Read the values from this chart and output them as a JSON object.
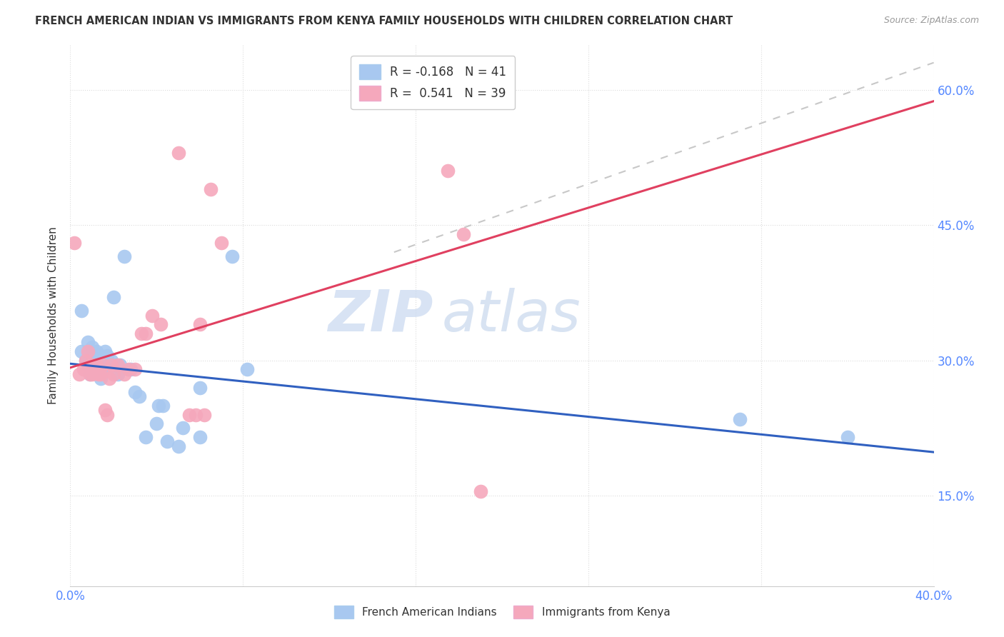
{
  "title": "FRENCH AMERICAN INDIAN VS IMMIGRANTS FROM KENYA FAMILY HOUSEHOLDS WITH CHILDREN CORRELATION CHART",
  "source": "Source: ZipAtlas.com",
  "ylabel": "Family Households with Children",
  "legend_blue_r": "R = -0.168",
  "legend_blue_n": "N = 41",
  "legend_pink_r": "R =  0.541",
  "legend_pink_n": "N = 39",
  "legend_label_blue": "French American Indians",
  "legend_label_pink": "Immigrants from Kenya",
  "blue_color": "#A8C8F0",
  "pink_color": "#F5A8BC",
  "blue_line_color": "#3060C0",
  "pink_line_color": "#E04060",
  "diagonal_color": "#C8C8C8",
  "watermark_zip": "ZIP",
  "watermark_atlas": "atlas",
  "blue_dots": [
    [
      0.005,
      0.355
    ],
    [
      0.005,
      0.31
    ],
    [
      0.007,
      0.3
    ],
    [
      0.008,
      0.32
    ],
    [
      0.008,
      0.295
    ],
    [
      0.009,
      0.285
    ],
    [
      0.01,
      0.29
    ],
    [
      0.01,
      0.305
    ],
    [
      0.01,
      0.315
    ],
    [
      0.011,
      0.3
    ],
    [
      0.012,
      0.31
    ],
    [
      0.012,
      0.295
    ],
    [
      0.013,
      0.295
    ],
    [
      0.013,
      0.285
    ],
    [
      0.014,
      0.28
    ],
    [
      0.015,
      0.29
    ],
    [
      0.016,
      0.31
    ],
    [
      0.017,
      0.305
    ],
    [
      0.018,
      0.295
    ],
    [
      0.019,
      0.3
    ],
    [
      0.02,
      0.37
    ],
    [
      0.021,
      0.295
    ],
    [
      0.022,
      0.285
    ],
    [
      0.023,
      0.295
    ],
    [
      0.025,
      0.415
    ],
    [
      0.028,
      0.29
    ],
    [
      0.03,
      0.265
    ],
    [
      0.032,
      0.26
    ],
    [
      0.035,
      0.215
    ],
    [
      0.04,
      0.23
    ],
    [
      0.041,
      0.25
    ],
    [
      0.043,
      0.25
    ],
    [
      0.045,
      0.21
    ],
    [
      0.05,
      0.205
    ],
    [
      0.052,
      0.225
    ],
    [
      0.06,
      0.27
    ],
    [
      0.06,
      0.215
    ],
    [
      0.075,
      0.415
    ],
    [
      0.082,
      0.29
    ],
    [
      0.31,
      0.235
    ],
    [
      0.36,
      0.215
    ]
  ],
  "pink_dots": [
    [
      0.002,
      0.43
    ],
    [
      0.004,
      0.285
    ],
    [
      0.006,
      0.29
    ],
    [
      0.007,
      0.3
    ],
    [
      0.008,
      0.31
    ],
    [
      0.008,
      0.29
    ],
    [
      0.009,
      0.295
    ],
    [
      0.009,
      0.285
    ],
    [
      0.01,
      0.295
    ],
    [
      0.01,
      0.285
    ],
    [
      0.011,
      0.29
    ],
    [
      0.012,
      0.295
    ],
    [
      0.013,
      0.285
    ],
    [
      0.014,
      0.285
    ],
    [
      0.015,
      0.295
    ],
    [
      0.016,
      0.245
    ],
    [
      0.017,
      0.24
    ],
    [
      0.018,
      0.28
    ],
    [
      0.019,
      0.295
    ],
    [
      0.02,
      0.285
    ],
    [
      0.022,
      0.295
    ],
    [
      0.025,
      0.285
    ],
    [
      0.027,
      0.29
    ],
    [
      0.03,
      0.29
    ],
    [
      0.033,
      0.33
    ],
    [
      0.035,
      0.33
    ],
    [
      0.038,
      0.35
    ],
    [
      0.042,
      0.34
    ],
    [
      0.05,
      0.53
    ],
    [
      0.055,
      0.24
    ],
    [
      0.058,
      0.24
    ],
    [
      0.06,
      0.34
    ],
    [
      0.062,
      0.24
    ],
    [
      0.065,
      0.49
    ],
    [
      0.07,
      0.43
    ],
    [
      0.16,
      0.59
    ],
    [
      0.175,
      0.51
    ],
    [
      0.182,
      0.44
    ],
    [
      0.19,
      0.155
    ]
  ],
  "xlim": [
    0.0,
    0.4
  ],
  "ylim": [
    0.05,
    0.65
  ],
  "ytick_positions": [
    0.15,
    0.3,
    0.45,
    0.6
  ],
  "ytick_labels": [
    "15.0%",
    "30.0%",
    "45.0%",
    "60.0%"
  ],
  "xtick_positions": [
    0.0,
    0.08,
    0.16,
    0.24,
    0.32,
    0.4
  ],
  "xtick_labels": [
    "0.0%",
    "",
    "",
    "",
    "",
    "40.0%"
  ],
  "background_color": "#FFFFFF",
  "grid_color": "#DCDCDC",
  "tick_color": "#5588FF",
  "text_color": "#333333",
  "source_color": "#999999"
}
